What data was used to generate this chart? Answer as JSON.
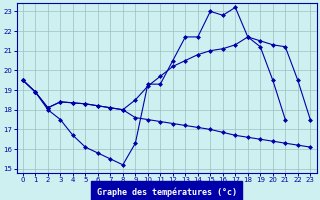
{
  "title": "Graphe des températures (°c)",
  "background_color": "#cef0f0",
  "grid_color": "#9bbfbf",
  "line_color": "#0000aa",
  "xlim": [
    -0.5,
    23.5
  ],
  "ylim": [
    14.8,
    23.4
  ],
  "yticks": [
    15,
    16,
    17,
    18,
    19,
    20,
    21,
    22,
    23
  ],
  "xticks": [
    0,
    1,
    2,
    3,
    4,
    5,
    6,
    7,
    8,
    9,
    10,
    11,
    12,
    13,
    14,
    15,
    16,
    17,
    18,
    19,
    20,
    21,
    22,
    23
  ],
  "line1_x": [
    0,
    1,
    2,
    3,
    4,
    5,
    6,
    7,
    8,
    9,
    10,
    11,
    12,
    13,
    14,
    15,
    16,
    17,
    18,
    19,
    20,
    21
  ],
  "line1_y": [
    19.5,
    18.9,
    18.0,
    17.5,
    16.7,
    16.1,
    15.8,
    15.5,
    15.2,
    16.3,
    19.3,
    19.3,
    20.5,
    21.7,
    21.7,
    23.0,
    22.8,
    23.2,
    21.7,
    21.2,
    19.5,
    17.5
  ],
  "line2_x": [
    0,
    1,
    2,
    3,
    4,
    5,
    6,
    7,
    8,
    9,
    10,
    11,
    12,
    13,
    14,
    15,
    16,
    17,
    18,
    19,
    20,
    21,
    22,
    23
  ],
  "line2_y": [
    19.5,
    18.9,
    18.1,
    18.4,
    18.35,
    18.3,
    18.2,
    18.1,
    18.0,
    17.6,
    17.5,
    17.4,
    17.3,
    17.2,
    17.1,
    17.0,
    16.85,
    16.7,
    16.6,
    16.5,
    16.4,
    16.3,
    16.2,
    16.1
  ],
  "line3_x": [
    0,
    1,
    2,
    3,
    4,
    5,
    6,
    7,
    8,
    9,
    10,
    11,
    12,
    13,
    14,
    15,
    16,
    17,
    18,
    19,
    20,
    21,
    22,
    23
  ],
  "line3_y": [
    19.5,
    18.9,
    18.1,
    18.4,
    18.35,
    18.3,
    18.2,
    18.1,
    18.0,
    18.5,
    19.2,
    19.7,
    20.2,
    20.5,
    20.8,
    21.0,
    21.1,
    21.3,
    21.7,
    21.5,
    21.3,
    21.2,
    19.5,
    17.5
  ]
}
